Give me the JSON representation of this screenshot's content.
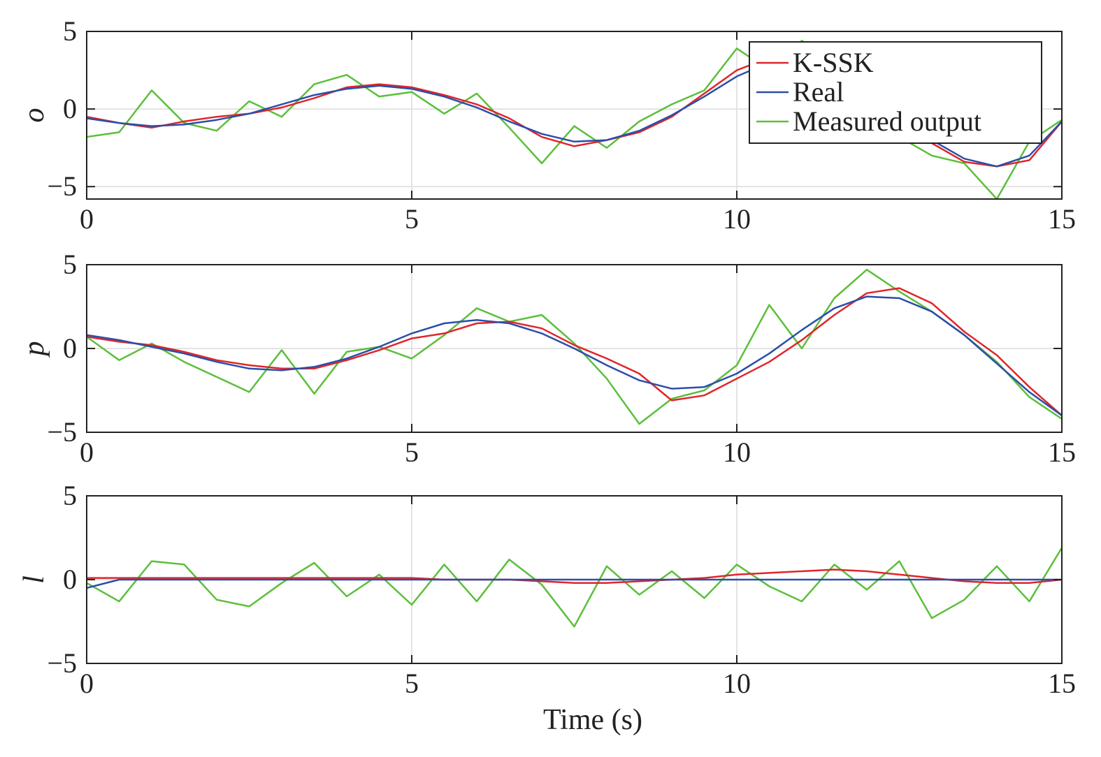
{
  "chart_data": {
    "type": "line",
    "xlabel": "Time (s)",
    "xlim": [
      0,
      15
    ],
    "ylim": [
      -5.8,
      5
    ],
    "xticks": [
      0,
      5,
      10,
      15
    ],
    "yticks": [
      -5,
      0,
      5
    ],
    "grid": true,
    "legend": {
      "placement": "top-right of top panel",
      "entries": [
        "K-SSK",
        "Real",
        "Measured output"
      ]
    },
    "series_styles": [
      {
        "name": "K-SSK",
        "color": "#e0262b"
      },
      {
        "name": "Real",
        "color": "#2a4fa8"
      },
      {
        "name": "Measured output",
        "color": "#5cbf3a"
      }
    ],
    "panels": [
      {
        "ylabel": "o",
        "ylim": [
          -5.8,
          5
        ],
        "series": [
          {
            "name": "Real",
            "x": [
              0,
              0.5,
              1,
              1.5,
              2,
              2.5,
              3,
              3.5,
              4,
              4.5,
              5,
              5.5,
              6,
              6.5,
              7,
              7.5,
              8,
              8.5,
              9,
              9.5,
              10,
              10.5,
              11,
              11.5,
              12,
              12.5,
              13,
              13.5,
              14,
              14.5,
              15
            ],
            "y": [
              -0.6,
              -0.9,
              -1.1,
              -1.0,
              -0.7,
              -0.3,
              0.3,
              0.9,
              1.3,
              1.5,
              1.3,
              0.8,
              0.1,
              -0.8,
              -1.6,
              -2.1,
              -2.0,
              -1.4,
              -0.4,
              0.8,
              2.1,
              3.0,
              3.2,
              2.6,
              1.3,
              -0.4,
              -2.0,
              -3.2,
              -3.7,
              -3.0,
              -0.8
            ]
          },
          {
            "name": "K-SSK",
            "x": [
              0,
              0.5,
              1,
              1.5,
              2,
              2.5,
              3,
              3.5,
              4,
              4.5,
              5,
              5.5,
              6,
              6.5,
              7,
              7.5,
              8,
              8.5,
              9,
              9.5,
              10,
              10.5,
              11,
              11.5,
              12,
              12.5,
              13,
              13.5,
              14,
              14.5,
              15
            ],
            "y": [
              -0.5,
              -0.9,
              -1.2,
              -0.8,
              -0.5,
              -0.3,
              0.1,
              0.7,
              1.4,
              1.6,
              1.4,
              0.9,
              0.3,
              -0.6,
              -1.8,
              -2.4,
              -2.0,
              -1.5,
              -0.5,
              1.0,
              2.5,
              3.3,
              3.4,
              2.9,
              1.6,
              -0.2,
              -2.2,
              -3.4,
              -3.7,
              -3.3,
              -0.8
            ]
          },
          {
            "name": "Measured output",
            "x": [
              0,
              0.5,
              1,
              1.5,
              2,
              2.5,
              3,
              3.5,
              4,
              4.5,
              5,
              5.5,
              6,
              6.5,
              7,
              7.5,
              8,
              8.5,
              9,
              9.5,
              10,
              10.5,
              11,
              11.5,
              12,
              12.5,
              13,
              13.5,
              14,
              14.5,
              15
            ],
            "y": [
              -1.8,
              -1.5,
              1.2,
              -0.9,
              -1.4,
              0.5,
              -0.5,
              1.6,
              2.2,
              0.8,
              1.1,
              -0.3,
              1.0,
              -1.2,
              -3.5,
              -1.1,
              -2.5,
              -0.8,
              0.3,
              1.2,
              3.9,
              2.5,
              4.4,
              3.0,
              0.9,
              -1.8,
              -3.0,
              -3.5,
              -5.8,
              -2.1,
              -0.7
            ]
          }
        ]
      },
      {
        "ylabel": "p",
        "ylim": [
          -5,
          5
        ],
        "series": [
          {
            "name": "Real",
            "x": [
              0,
              0.5,
              1,
              1.5,
              2,
              2.5,
              3,
              3.5,
              4,
              4.5,
              5,
              5.5,
              6,
              6.5,
              7,
              7.5,
              8,
              8.5,
              9,
              9.5,
              10,
              10.5,
              11,
              11.5,
              12,
              12.5,
              13,
              13.5,
              14,
              14.5,
              15
            ],
            "y": [
              0.8,
              0.5,
              0.1,
              -0.3,
              -0.8,
              -1.2,
              -1.3,
              -1.1,
              -0.6,
              0.1,
              0.9,
              1.5,
              1.7,
              1.5,
              0.9,
              0.0,
              -1.0,
              -1.9,
              -2.4,
              -2.3,
              -1.5,
              -0.3,
              1.1,
              2.4,
              3.1,
              3.0,
              2.2,
              0.8,
              -0.9,
              -2.6,
              -4.0
            ]
          },
          {
            "name": "K-SSK",
            "x": [
              0,
              0.5,
              1,
              1.5,
              2,
              2.5,
              3,
              3.5,
              4,
              4.5,
              5,
              5.5,
              6,
              6.5,
              7,
              7.5,
              8,
              8.5,
              9,
              9.5,
              10,
              10.5,
              11,
              11.5,
              12,
              12.5,
              13,
              13.5,
              14,
              14.5,
              15
            ],
            "y": [
              0.7,
              0.4,
              0.2,
              -0.2,
              -0.7,
              -1.0,
              -1.2,
              -1.2,
              -0.7,
              -0.1,
              0.6,
              0.9,
              1.5,
              1.6,
              1.2,
              0.2,
              -0.6,
              -1.5,
              -3.1,
              -2.8,
              -1.8,
              -0.8,
              0.5,
              2.0,
              3.3,
              3.6,
              2.7,
              1.0,
              -0.4,
              -2.3,
              -4.0
            ]
          },
          {
            "name": "Measured output",
            "x": [
              0,
              0.5,
              1,
              1.5,
              2,
              2.5,
              3,
              3.5,
              4,
              4.5,
              5,
              5.5,
              6,
              6.5,
              7,
              7.5,
              8,
              8.5,
              9,
              9.5,
              10,
              10.5,
              11,
              11.5,
              12,
              12.5,
              13,
              13.5,
              14,
              14.5,
              15
            ],
            "y": [
              0.7,
              -0.7,
              0.3,
              -0.8,
              -1.7,
              -2.6,
              -0.1,
              -2.7,
              -0.2,
              0.1,
              -0.6,
              0.8,
              2.4,
              1.6,
              2.0,
              0.3,
              -1.8,
              -4.5,
              -3.0,
              -2.5,
              -1.0,
              2.6,
              0.0,
              3.0,
              4.7,
              3.4,
              2.2,
              0.8,
              -0.8,
              -2.9,
              -4.2
            ]
          }
        ]
      },
      {
        "ylabel": "l",
        "ylim": [
          -5,
          5
        ],
        "series": [
          {
            "name": "Real",
            "x": [
              0,
              0.5,
              1,
              1.5,
              2,
              2.5,
              3,
              3.5,
              4,
              4.5,
              5,
              5.5,
              6,
              6.5,
              7,
              7.5,
              8,
              8.5,
              9,
              9.5,
              10,
              10.5,
              11,
              11.5,
              12,
              12.5,
              13,
              13.5,
              14,
              14.5,
              15
            ],
            "y": [
              -0.5,
              0.0,
              0.0,
              0.0,
              0.0,
              0.0,
              0.0,
              0.0,
              0.0,
              0.0,
              0.0,
              0.0,
              0.0,
              0.0,
              0.0,
              0.0,
              0.0,
              0.0,
              0.0,
              0.0,
              0.0,
              0.0,
              0.0,
              0.0,
              0.0,
              0.0,
              0.0,
              0.0,
              0.0,
              0.0,
              0.0
            ]
          },
          {
            "name": "K-SSK",
            "x": [
              0,
              0.5,
              1,
              1.5,
              2,
              2.5,
              3,
              3.5,
              4,
              4.5,
              5,
              5.5,
              6,
              6.5,
              7,
              7.5,
              8,
              8.5,
              9,
              9.5,
              10,
              10.5,
              11,
              11.5,
              12,
              12.5,
              13,
              13.5,
              14,
              14.5,
              15
            ],
            "y": [
              0.1,
              0.1,
              0.1,
              0.1,
              0.1,
              0.1,
              0.1,
              0.1,
              0.1,
              0.1,
              0.1,
              0.0,
              0.0,
              0.0,
              -0.1,
              -0.2,
              -0.2,
              -0.1,
              0.0,
              0.1,
              0.3,
              0.4,
              0.5,
              0.6,
              0.5,
              0.3,
              0.1,
              -0.1,
              -0.2,
              -0.2,
              0.0
            ]
          },
          {
            "name": "Measured output",
            "x": [
              0,
              0.5,
              1,
              1.5,
              2,
              2.5,
              3,
              3.5,
              4,
              4.5,
              5,
              5.5,
              6,
              6.5,
              7,
              7.5,
              8,
              8.5,
              9,
              9.5,
              10,
              10.5,
              11,
              11.5,
              12,
              12.5,
              13,
              13.5,
              14,
              14.5,
              15
            ],
            "y": [
              -0.2,
              -1.3,
              1.1,
              0.9,
              -1.2,
              -1.6,
              -0.2,
              1.0,
              -1.0,
              0.3,
              -1.5,
              0.9,
              -1.3,
              1.2,
              -0.3,
              -2.8,
              0.8,
              -0.9,
              0.5,
              -1.1,
              0.9,
              -0.4,
              -1.3,
              0.9,
              -0.6,
              1.1,
              -2.3,
              -1.2,
              0.8,
              -1.3,
              1.9
            ]
          }
        ]
      }
    ]
  }
}
